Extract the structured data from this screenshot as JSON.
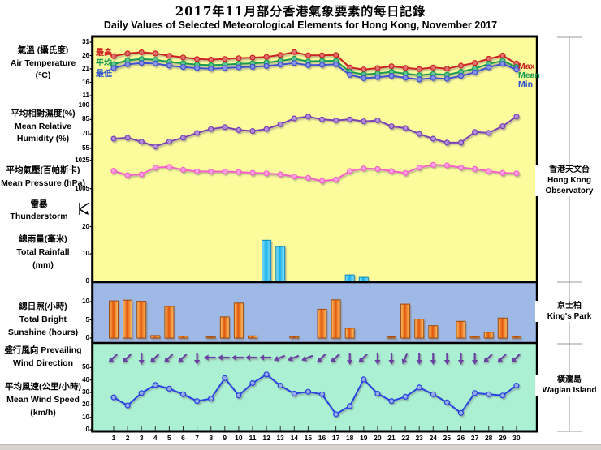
{
  "title_zh": "2017年11月部分香港氣象要素的每日記錄",
  "title_en": "Daily Values of Selected Meteorological Elements for Hong Kong, November 2017",
  "days": [
    1,
    2,
    3,
    4,
    5,
    6,
    7,
    8,
    9,
    10,
    11,
    12,
    13,
    14,
    15,
    16,
    17,
    18,
    19,
    20,
    21,
    22,
    23,
    24,
    25,
    26,
    27,
    28,
    29,
    30
  ],
  "left_axis": {
    "temperature": {
      "zh": "氣溫 (攝氏度)",
      "en": "Air Temperature",
      "unit": "(°C)"
    },
    "humidity": {
      "zh": "平均相對濕度(%)",
      "en1": "Mean Relative",
      "en2": "Humidity (%)"
    },
    "pressure": {
      "zh": "平均氣壓(百帕斯卡)",
      "en": "Mean Pressure (hPa)"
    },
    "thunderstorm": {
      "zh": "雷暴",
      "en": "Thunderstorm"
    },
    "rainfall": {
      "zh": "總雨量(毫米)",
      "en": "Total Rainfall",
      "unit": "(mm)"
    },
    "sunshine": {
      "zh": "總日照(小時)",
      "en1": "Total Bright",
      "en2": "Sunshine (hours)"
    },
    "wind_direction": {
      "line1": "盛行風向 Prevailing",
      "line2": "Wind Direction"
    },
    "wind_speed": {
      "zh": "平均風速(公里/小時)",
      "en": "Mean Wind Speed",
      "unit": "(km/h)"
    }
  },
  "stations": [
    {
      "zh": "香港天文台",
      "en_lines": [
        "Hong Kong",
        "Observatory"
      ]
    },
    {
      "zh": "京士柏",
      "en_lines": [
        "King's Park"
      ]
    },
    {
      "zh": "橫瀾島",
      "en_lines": [
        "Waglan Island"
      ]
    }
  ],
  "legend": {
    "zh": [
      {
        "label": "最高",
        "color": "#cc2222"
      },
      {
        "label": "平均",
        "color": "#169a52"
      },
      {
        "label": "最低",
        "color": "#2a52cc"
      }
    ],
    "en": [
      {
        "label": "Max",
        "color": "#cc2222"
      },
      {
        "label": "Mean",
        "color": "#169a52"
      },
      {
        "label": "Min",
        "color": "#2a52cc"
      }
    ]
  },
  "colors": {
    "panel_yellow": "#fcfc9c",
    "panel_blue": "#9fb9e6",
    "panel_green": "#abf0d3",
    "frame": "#000000",
    "arrow": "#6b3fa3",
    "bracket": "#999999"
  },
  "chart_data": [
    {
      "id": "air_temperature",
      "type": "line",
      "panel": "temperature",
      "title": "Air Temperature (°C)",
      "ylim": [
        11,
        31
      ],
      "yticks": [
        31,
        26,
        21,
        16,
        11
      ],
      "series": [
        {
          "name": "Max",
          "color": "#cc2222",
          "marker_fill": "#e2716d",
          "values": [
            25.8,
            26.8,
            27.2,
            26.8,
            25.9,
            25.3,
            24.7,
            24.5,
            24.7,
            25.0,
            25.2,
            25.5,
            26.2,
            27.3,
            26.1,
            26.1,
            26.2,
            21.5,
            20.8,
            21.3,
            22.0,
            21.4,
            20.9,
            21.5,
            21.1,
            22.2,
            23.2,
            24.8,
            26.0,
            23.0
          ]
        },
        {
          "name": "Mean",
          "color": "#169a52",
          "marker_fill": "#63c690",
          "values": [
            22.8,
            24.2,
            24.7,
            24.4,
            23.6,
            23.1,
            22.6,
            22.4,
            22.6,
            22.9,
            23.1,
            23.4,
            24.0,
            24.8,
            23.8,
            24.0,
            24.0,
            19.9,
            18.9,
            19.3,
            19.9,
            19.2,
            18.6,
            19.1,
            18.8,
            19.9,
            21.1,
            22.9,
            24.0,
            21.7
          ]
        },
        {
          "name": "Min",
          "color": "#3c50d2",
          "marker_fill": "#8894e2",
          "values": [
            21.3,
            22.7,
            23.2,
            23.0,
            22.2,
            21.7,
            21.3,
            21.1,
            21.3,
            21.6,
            21.8,
            22.1,
            22.6,
            23.2,
            22.4,
            22.5,
            22.7,
            18.8,
            17.5,
            17.9,
            18.4,
            17.7,
            17.1,
            17.6,
            17.3,
            18.4,
            19.7,
            21.6,
            22.9,
            20.8
          ]
        }
      ]
    },
    {
      "id": "mean_relative_humidity",
      "type": "line",
      "panel": "humidity",
      "title": "Mean Relative Humidity (%)",
      "ylim": [
        55,
        100
      ],
      "yticks": [
        100,
        85,
        70,
        55
      ],
      "series": [
        {
          "name": "Mean Relative Humidity",
          "color": "#7b40b5",
          "marker_fill": "#b08fd8",
          "values": [
            65,
            66,
            62,
            57,
            62,
            66,
            71,
            75,
            77,
            74,
            73,
            75,
            80,
            86,
            88,
            85,
            84,
            85,
            83,
            84,
            78,
            76,
            70,
            65,
            61,
            61,
            72,
            71,
            78,
            88
          ]
        }
      ]
    },
    {
      "id": "mean_pressure",
      "type": "line",
      "panel": "pressure",
      "title": "Mean Pressure (hPa)",
      "ylim": [
        1005,
        1025
      ],
      "yticks": [
        1025,
        1005
      ],
      "series": [
        {
          "name": "Mean Pressure",
          "color": "#f261c8",
          "marker_fill": "#ff9fe0",
          "values": [
            1017.6,
            1014.5,
            1015.1,
            1019.9,
            1020.4,
            1018.3,
            1017.2,
            1017.1,
            1017.1,
            1016.8,
            1016.2,
            1015.8,
            1015.1,
            1013.6,
            1012.6,
            1010.5,
            1011.4,
            1017.4,
            1019.3,
            1018.9,
            1017.4,
            1016.1,
            1019.9,
            1021.8,
            1021.4,
            1019.9,
            1018.9,
            1017.4,
            1016.1,
            1015.8
          ]
        }
      ]
    },
    {
      "id": "thunderstorm",
      "type": "event-row",
      "panel": "thunderstorm",
      "title": "Thunderstorm occurrence",
      "occurrence_days": []
    },
    {
      "id": "total_rainfall",
      "type": "bar",
      "panel": "rainfall",
      "title": "Total Rainfall (mm)",
      "ylim": [
        0,
        20
      ],
      "yticks": [
        20,
        10,
        0
      ],
      "color": "#29c5f2",
      "values": [
        0,
        0,
        0,
        0,
        0,
        0,
        0,
        0,
        0,
        0,
        0,
        15.0,
        12.7,
        0,
        0,
        0,
        0,
        2.2,
        1.3,
        0,
        0,
        0,
        0,
        0,
        0,
        0,
        0,
        0,
        0,
        0
      ]
    },
    {
      "id": "total_bright_sunshine",
      "type": "bar",
      "panel": "sunshine",
      "title": "Total Bright Sunshine (hours)",
      "ylim": [
        0,
        12
      ],
      "yticks": [
        10,
        5,
        0
      ],
      "color": "#e8610f",
      "values": [
        10.2,
        10.4,
        10.1,
        0.7,
        8.7,
        0.5,
        0,
        0.3,
        5.8,
        9.6,
        0.6,
        0,
        0,
        0.4,
        0,
        7.9,
        10.5,
        2.7,
        0,
        0,
        0.3,
        9.3,
        5.2,
        3.4,
        0,
        4.6,
        0.4,
        1.6,
        5.5,
        0.4
      ]
    },
    {
      "id": "prevailing_wind_direction",
      "type": "wind-arrows",
      "panel": "wind_direction",
      "title": "Prevailing Wind Direction (wind from)",
      "color": "#6b3fa3",
      "values": [
        "NE",
        "NE",
        "N",
        "NE",
        "NE",
        "NE",
        "N",
        "E",
        "E",
        "E",
        "E",
        "E",
        "ENE",
        "ENE",
        "ENE",
        "NE",
        "NE",
        "N",
        "NE",
        "N",
        "N",
        "NNE",
        "N",
        "N",
        "N",
        "N",
        "N",
        "NE",
        "NE",
        "NE"
      ]
    },
    {
      "id": "mean_wind_speed",
      "type": "line",
      "panel": "wind_speed",
      "title": "Mean Wind Speed (km/h)",
      "ylim": [
        0,
        50
      ],
      "yticks": [
        50,
        40,
        30,
        20,
        10,
        0
      ],
      "series": [
        {
          "name": "Mean Wind Speed",
          "color": "#2742e0",
          "marker_fill": "#96ade8",
          "values": [
            26,
            19.5,
            29.5,
            36,
            33,
            28.5,
            23,
            25,
            41.5,
            27.5,
            37.5,
            44.5,
            35.5,
            29,
            30.5,
            28.5,
            12.5,
            19,
            40.5,
            29,
            23,
            26.5,
            34,
            28.5,
            22,
            13.5,
            29.5,
            28.5,
            27.5,
            35.5
          ]
        }
      ]
    }
  ]
}
